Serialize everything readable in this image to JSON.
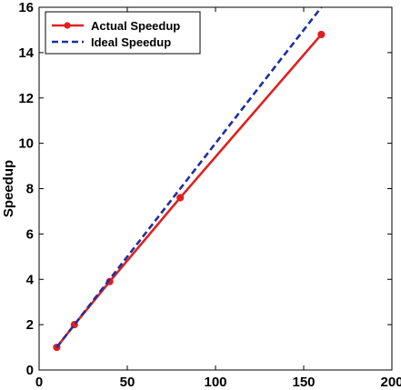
{
  "chart_data": {
    "type": "line",
    "title": "",
    "xlabel": "",
    "ylabel": "Speedup",
    "xlim": [
      0,
      200
    ],
    "ylim": [
      0,
      16
    ],
    "xticks": [
      0,
      50,
      100,
      150,
      200
    ],
    "yticks": [
      0,
      2,
      4,
      6,
      8,
      10,
      12,
      14,
      16
    ],
    "grid": false,
    "legend_position": "top-left",
    "series": [
      {
        "name": "Actual Speedup",
        "color": "#e02020",
        "style": "solid",
        "markers": true,
        "x": [
          10,
          20,
          40,
          80,
          160
        ],
        "y": [
          1,
          2,
          3.9,
          7.6,
          14.8
        ]
      },
      {
        "name": "Ideal Speedup",
        "color": "#1f2fa0",
        "style": "dashed",
        "markers": false,
        "x": [
          10,
          20,
          40,
          80,
          160
        ],
        "y": [
          1,
          2,
          4,
          8,
          16
        ]
      }
    ]
  }
}
